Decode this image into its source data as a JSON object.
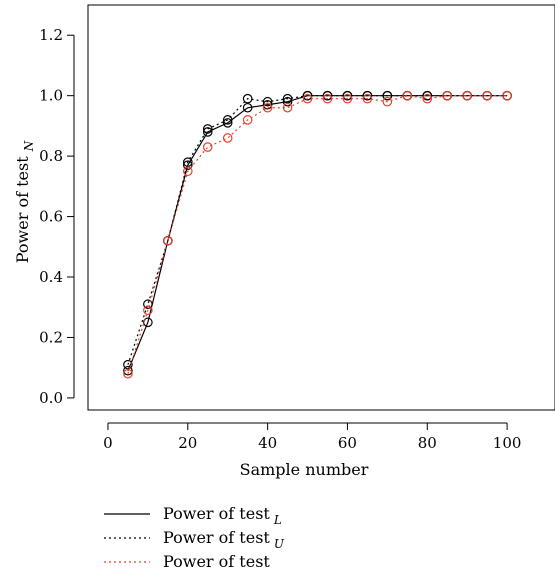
{
  "chart_data": {
    "type": "scatter",
    "xlabel": "Sample number",
    "ylabel": "Power of test",
    "ylabel_sub": "N",
    "xlim": [
      -5,
      112
    ],
    "ylim": [
      -0.04,
      1.3
    ],
    "xticks": [
      0,
      20,
      40,
      60,
      80,
      100
    ],
    "xtick_labels": [
      "0",
      "20",
      "40",
      "60",
      "80",
      "100"
    ],
    "yticks": [
      0.0,
      0.2,
      0.4,
      0.6,
      0.8,
      1.0,
      1.2
    ],
    "ytick_labels": [
      "0.0",
      "0.2",
      "0.4",
      "0.6",
      "0.8",
      "1.0",
      "1.2"
    ],
    "x": [
      5,
      10,
      15,
      20,
      25,
      30,
      35,
      40,
      45,
      50,
      55,
      60,
      65,
      70,
      75,
      80,
      85,
      90,
      95,
      100
    ],
    "series": [
      {
        "name": "Power of test",
        "sub": "L",
        "line_style": "solid",
        "color": "#000000",
        "values": [
          0.09,
          0.25,
          0.52,
          0.77,
          0.88,
          0.91,
          0.96,
          0.97,
          0.98,
          1.0,
          1.0,
          1.0,
          1.0,
          1.0,
          1.0,
          1.0,
          1.0,
          1.0,
          1.0,
          1.0
        ]
      },
      {
        "name": "Power of test",
        "sub": "U",
        "line_style": "dotted",
        "color": "#000000",
        "values": [
          0.11,
          0.31,
          0.52,
          0.78,
          0.89,
          0.92,
          0.99,
          0.98,
          0.99,
          1.0,
          1.0,
          1.0,
          1.0,
          1.0,
          1.0,
          1.0,
          1.0,
          1.0,
          1.0,
          1.0
        ]
      },
      {
        "name": "Power of test",
        "sub": "",
        "line_style": "dotted",
        "color": "#e8402a",
        "values": [
          0.08,
          0.29,
          0.52,
          0.75,
          0.83,
          0.86,
          0.92,
          0.96,
          0.96,
          0.99,
          0.99,
          0.99,
          0.99,
          0.98,
          1.0,
          0.99,
          1.0,
          1.0,
          1.0,
          1.0
        ]
      }
    ],
    "legend_position": "bottom-left",
    "grid": false
  }
}
